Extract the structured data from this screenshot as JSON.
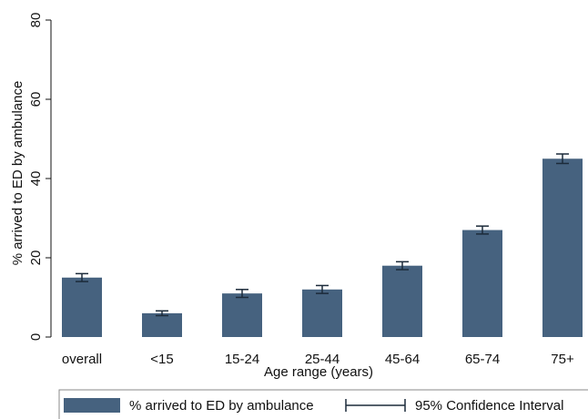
{
  "chart_data": {
    "type": "bar",
    "x_label": "Age range (years)",
    "y_label": "% arrived to ED by ambulance",
    "categories": [
      "overall",
      "<15",
      "15-24",
      "25-44",
      "45-64",
      "65-74",
      "75+"
    ],
    "series": [
      {
        "name": "% arrived to ED by ambulance",
        "color": "#46627f",
        "values": [
          15,
          6,
          11,
          12,
          18,
          27,
          45
        ],
        "errors": [
          1,
          0.6,
          1,
          1,
          1,
          1,
          1.2
        ]
      }
    ],
    "error_label": "95% Confidence Interval",
    "error_color": "#1c2b3a",
    "ylim": [
      0,
      80
    ],
    "yticks": [
      0,
      20,
      40,
      60,
      80
    ]
  }
}
